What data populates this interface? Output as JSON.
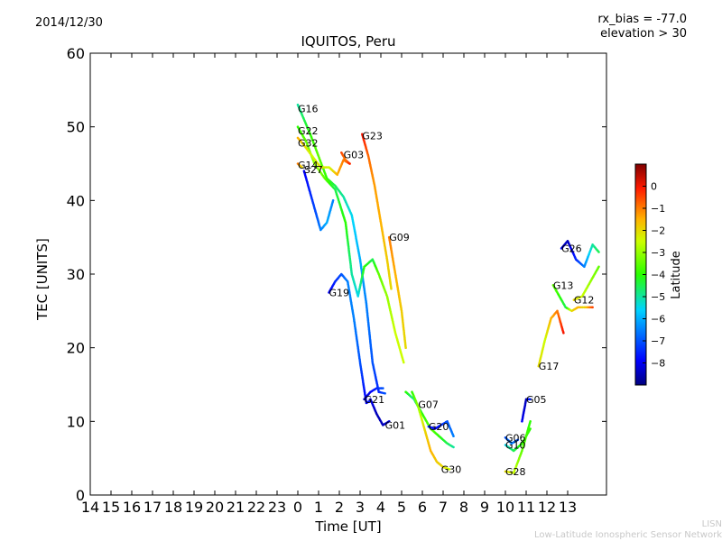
{
  "header": {
    "date": "2014/12/30",
    "rx_bias": "rx_bias = -77.0",
    "elevation": "elevation > 30",
    "title": "IQUITOS, Peru"
  },
  "watermark": {
    "line1": "LISN",
    "line2": "Low-Latitude Ionospheric Sensor Network"
  },
  "chart_data": {
    "type": "scatter",
    "title": "IQUITOS, Peru",
    "xlabel": "Time [UT]",
    "ylabel": "TEC [UNITS]",
    "ylim": [
      0,
      60
    ],
    "xlim": [
      14,
      38.6
    ],
    "yticks": [
      0,
      10,
      20,
      30,
      40,
      50,
      60
    ],
    "xticks": [
      {
        "v": 14,
        "label": "14"
      },
      {
        "v": 15,
        "label": "15"
      },
      {
        "v": 16,
        "label": "16"
      },
      {
        "v": 17,
        "label": "17"
      },
      {
        "v": 18,
        "label": "18"
      },
      {
        "v": 19,
        "label": "19"
      },
      {
        "v": 20,
        "label": "20"
      },
      {
        "v": 21,
        "label": "21"
      },
      {
        "v": 22,
        "label": "22"
      },
      {
        "v": 23,
        "label": "23"
      },
      {
        "v": 24,
        "label": "0"
      },
      {
        "v": 25,
        "label": "1"
      },
      {
        "v": 26,
        "label": "2"
      },
      {
        "v": 27,
        "label": "3"
      },
      {
        "v": 28,
        "label": "4"
      },
      {
        "v": 29,
        "label": "5"
      },
      {
        "v": 30,
        "label": "6"
      },
      {
        "v": 31,
        "label": "7"
      },
      {
        "v": 32,
        "label": "8"
      },
      {
        "v": 33,
        "label": "9"
      },
      {
        "v": 34,
        "label": "10"
      },
      {
        "v": 35,
        "label": "11"
      },
      {
        "v": 36,
        "label": "12"
      },
      {
        "v": 37,
        "label": "13"
      }
    ],
    "colorbar": {
      "label": "Latitude",
      "range": [
        -9,
        1
      ],
      "ticks": [
        0,
        -1,
        -2,
        -3,
        -4,
        -5,
        -6,
        -7,
        -8
      ],
      "tick_labels": [
        "0",
        "−1",
        "−2",
        "−3",
        "−4",
        "−5",
        "−6",
        "−7",
        "−8"
      ]
    },
    "series": [
      {
        "name": "G16",
        "label_at": [
          24.0,
          52.5
        ],
        "points": [
          [
            24.0,
            53,
            -5
          ],
          [
            24.3,
            51,
            -4.5
          ],
          [
            24.6,
            49,
            -4
          ],
          [
            25.0,
            46,
            -3.5
          ],
          [
            25.4,
            43,
            -4
          ],
          [
            25.8,
            42,
            -4.5
          ],
          [
            26.2,
            40.5,
            -5
          ],
          [
            26.6,
            38,
            -5.5
          ],
          [
            27.0,
            32,
            -6
          ],
          [
            27.3,
            26,
            -6.5
          ],
          [
            27.6,
            18,
            -7
          ],
          [
            27.9,
            14,
            -7.5
          ],
          [
            28.2,
            13.8,
            -7
          ]
        ]
      },
      {
        "name": "G22",
        "label_at": [
          24.0,
          49.5
        ],
        "points": [
          [
            24.0,
            50,
            -4
          ],
          [
            24.4,
            48,
            -3.5
          ],
          [
            24.8,
            45,
            -3
          ],
          [
            25.3,
            43,
            -3.5
          ],
          [
            25.8,
            41.5,
            -4.5
          ],
          [
            26.3,
            37,
            -4
          ],
          [
            26.6,
            30,
            -5
          ],
          [
            26.9,
            27,
            -5.5
          ],
          [
            27.2,
            31,
            -4
          ],
          [
            27.6,
            32,
            -4.5
          ],
          [
            27.9,
            30,
            -3.5
          ],
          [
            28.3,
            27,
            -3
          ],
          [
            28.7,
            22,
            -2.5
          ],
          [
            29.1,
            18,
            -2.5
          ]
        ]
      },
      {
        "name": "G32",
        "label_at": [
          24.0,
          47.8
        ],
        "points": [
          [
            24.0,
            48.5,
            -1.5
          ],
          [
            24.3,
            47.5,
            -2
          ],
          [
            24.7,
            46,
            -2.5
          ],
          [
            25.1,
            44.5,
            -2
          ],
          [
            25.5,
            44.5,
            -2.5
          ],
          [
            25.9,
            43.5,
            -1.5
          ],
          [
            26.2,
            45.5,
            -1
          ],
          [
            26.5,
            45,
            -0.5
          ]
        ]
      },
      {
        "name": "G03",
        "label_at": [
          26.2,
          46.2
        ],
        "points": [
          [
            26.1,
            46.5,
            -0.5
          ],
          [
            26.3,
            45.5,
            -1
          ],
          [
            26.5,
            45,
            -0.2
          ]
        ]
      },
      {
        "name": "G23",
        "label_at": [
          27.1,
          48.8
        ],
        "points": [
          [
            27.1,
            49,
            0
          ],
          [
            27.4,
            46,
            -0.8
          ],
          [
            27.7,
            42,
            -1.3
          ],
          [
            28.0,
            37,
            -1.5
          ],
          [
            28.3,
            32,
            -1.8
          ],
          [
            28.5,
            28,
            -2
          ]
        ]
      },
      {
        "name": "G14",
        "label_at": [
          24.0,
          44.8
        ],
        "points": [
          [
            24.0,
            45,
            -1
          ],
          [
            24.2,
            44.5,
            -2
          ]
        ]
      },
      {
        "name": "S27",
        "label_at": [
          24.3,
          44.2
        ],
        "points": [
          [
            24.3,
            44,
            -8
          ],
          [
            24.6,
            41,
            -7.5
          ],
          [
            24.9,
            38,
            -7
          ],
          [
            25.1,
            36,
            -6.5
          ],
          [
            25.4,
            37,
            -6
          ],
          [
            25.7,
            40,
            -6.5
          ]
        ]
      },
      {
        "name": "G19",
        "label_at": [
          25.5,
          27.5
        ],
        "points": [
          [
            25.5,
            27.5,
            -8
          ],
          [
            25.8,
            29,
            -7.5
          ],
          [
            26.1,
            30,
            -7
          ],
          [
            26.4,
            29,
            -6.5
          ],
          [
            26.7,
            24,
            -6.5
          ],
          [
            27.0,
            18,
            -7
          ],
          [
            27.3,
            12.5,
            -8
          ],
          [
            27.5,
            12.8,
            -7.5
          ]
        ]
      },
      {
        "name": "G09",
        "label_at": [
          28.4,
          35
        ],
        "points": [
          [
            28.4,
            35,
            -1
          ],
          [
            28.7,
            30,
            -1.5
          ],
          [
            29.0,
            25,
            -1.8
          ],
          [
            29.2,
            20,
            -2
          ]
        ]
      },
      {
        "name": "G21",
        "label_at": [
          27.2,
          13
        ],
        "points": [
          [
            27.2,
            13,
            -8.5
          ],
          [
            27.5,
            14,
            -8
          ],
          [
            27.8,
            14.5,
            -7.5
          ],
          [
            28.1,
            14.5,
            -7
          ]
        ]
      },
      {
        "name": "G01",
        "label_at": [
          28.2,
          9.5
        ],
        "points": [
          [
            27.5,
            13,
            -8
          ],
          [
            27.8,
            11,
            -8.5
          ],
          [
            28.1,
            9.5,
            -8.5
          ],
          [
            28.4,
            10,
            -8
          ]
        ]
      },
      {
        "name": "G07",
        "label_at": [
          29.8,
          12.3
        ],
        "points": [
          [
            29.2,
            14,
            -4
          ],
          [
            29.6,
            13,
            -5
          ],
          [
            30.0,
            11,
            -4
          ],
          [
            30.4,
            9,
            -3.5
          ],
          [
            30.8,
            8,
            -4
          ],
          [
            31.2,
            7,
            -4.5
          ],
          [
            31.5,
            6.5,
            -5
          ]
        ]
      },
      {
        "name": "G20",
        "label_at": [
          30.3,
          9.3
        ],
        "points": [
          [
            30.3,
            9.3,
            -7.5
          ],
          [
            30.6,
            9,
            -8
          ],
          [
            30.9,
            9.5,
            -7.5
          ],
          [
            31.2,
            10,
            -7
          ],
          [
            31.5,
            8,
            -6.5
          ]
        ]
      },
      {
        "name": "G30",
        "label_at": [
          30.9,
          3.5
        ],
        "points": [
          [
            29.5,
            14,
            -4
          ],
          [
            29.8,
            12,
            -3
          ],
          [
            30.1,
            9,
            -2
          ],
          [
            30.4,
            6,
            -1.5
          ],
          [
            30.7,
            4.5,
            -1.8
          ],
          [
            31.0,
            3.8,
            -2
          ],
          [
            31.3,
            3.5,
            -2.5
          ]
        ]
      },
      {
        "name": "G06",
        "label_at": [
          34.0,
          7.8
        ],
        "points": [
          [
            34.0,
            7.8,
            -7
          ],
          [
            34.3,
            7,
            -6.5
          ],
          [
            34.6,
            7.5,
            -7
          ]
        ]
      },
      {
        "name": "G10",
        "label_at": [
          34.0,
          6.8
        ],
        "points": [
          [
            34.0,
            6.8,
            -5.5
          ],
          [
            34.4,
            6,
            -4.5
          ],
          [
            34.8,
            7,
            -4
          ],
          [
            35.2,
            9,
            -4
          ]
        ]
      },
      {
        "name": "G28",
        "label_at": [
          34.0,
          3.2
        ],
        "points": [
          [
            34.0,
            3.2,
            -2
          ],
          [
            34.4,
            3,
            -2.5
          ],
          [
            34.8,
            6,
            -3.5
          ],
          [
            35.2,
            10,
            -4
          ]
        ]
      },
      {
        "name": "G05",
        "label_at": [
          35.0,
          13
        ],
        "points": [
          [
            34.8,
            10,
            -8
          ],
          [
            35.0,
            13,
            -8.5
          ],
          [
            35.2,
            13,
            -7.5
          ]
        ]
      },
      {
        "name": "G17",
        "label_at": [
          35.6,
          17.5
        ],
        "points": [
          [
            35.6,
            17.5,
            -2
          ],
          [
            35.9,
            21,
            -2.5
          ],
          [
            36.2,
            24,
            -1.5
          ],
          [
            36.5,
            25,
            -1
          ],
          [
            36.8,
            22,
            0
          ]
        ]
      },
      {
        "name": "G13",
        "label_at": [
          36.3,
          28.5
        ],
        "points": [
          [
            36.3,
            28.5,
            -3.5
          ],
          [
            36.6,
            27,
            -4
          ],
          [
            36.9,
            25.5,
            -4.5
          ],
          [
            37.2,
            25,
            -2
          ],
          [
            37.5,
            25.5,
            -1.5
          ],
          [
            37.8,
            25.5,
            -2
          ],
          [
            38.2,
            25.5,
            -0.5
          ]
        ]
      },
      {
        "name": "G12",
        "label_at": [
          37.3,
          26.5
        ],
        "points": [
          [
            37.3,
            26.5,
            -2
          ],
          [
            37.7,
            27,
            -2.5
          ],
          [
            38.1,
            29,
            -3
          ],
          [
            38.5,
            31,
            -3.5
          ]
        ]
      },
      {
        "name": "G26",
        "label_at": [
          36.7,
          33.5
        ],
        "points": [
          [
            36.7,
            33.5,
            -8
          ],
          [
            37.0,
            34.5,
            -8.5
          ],
          [
            37.4,
            32,
            -7.5
          ],
          [
            37.8,
            31,
            -6.5
          ],
          [
            38.2,
            34,
            -5
          ],
          [
            38.5,
            33,
            -4.5
          ]
        ]
      }
    ]
  }
}
